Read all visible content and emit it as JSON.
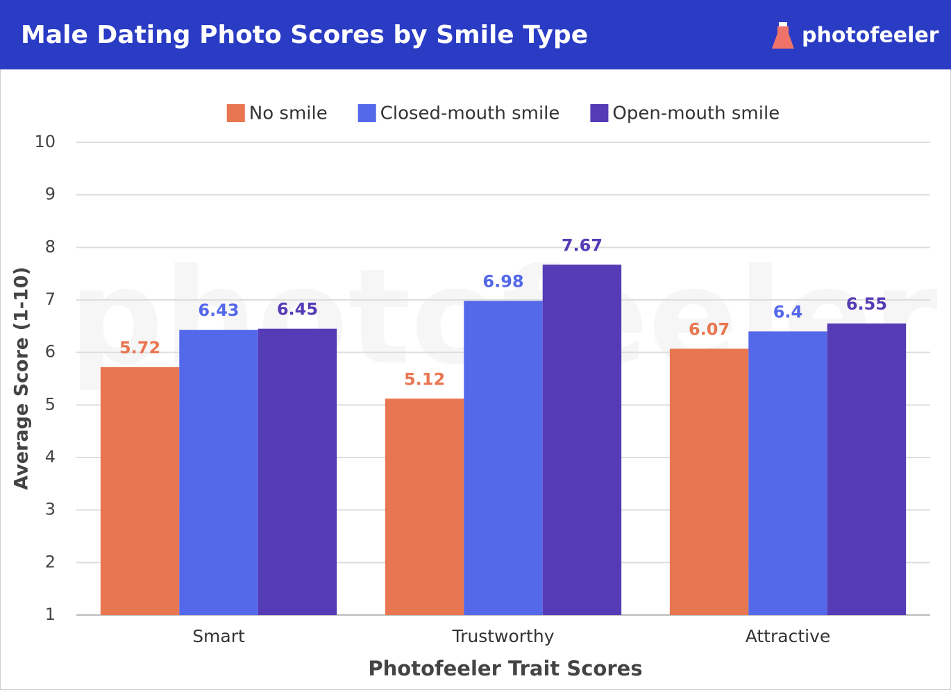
{
  "chart_data": {
    "type": "bar",
    "title": "Male Dating Photo Scores by Smile Type",
    "brand": "photofeeler",
    "watermark": "photofeeler",
    "x_label": "Photofeeler Trait Scores",
    "y_label": "Average Score (1-10)",
    "categories": [
      "Smart",
      "Trustworthy",
      "Attractive"
    ],
    "series": [
      {
        "name": "No smile",
        "color": "#e87651",
        "values": [
          5.72,
          5.12,
          6.07
        ]
      },
      {
        "name": "Closed-mouth smile",
        "color": "#5468ea",
        "values": [
          6.43,
          6.98,
          6.4
        ]
      },
      {
        "name": "Open-mouth smile",
        "color": "#553bb5",
        "values": [
          6.45,
          7.67,
          6.55
        ]
      }
    ],
    "ylim": [
      1,
      10
    ],
    "yticks": [
      1,
      2,
      3,
      4,
      5,
      6,
      7,
      8,
      9,
      10
    ],
    "grid": true,
    "legend": "top",
    "header_color": "#2a3bc4"
  }
}
